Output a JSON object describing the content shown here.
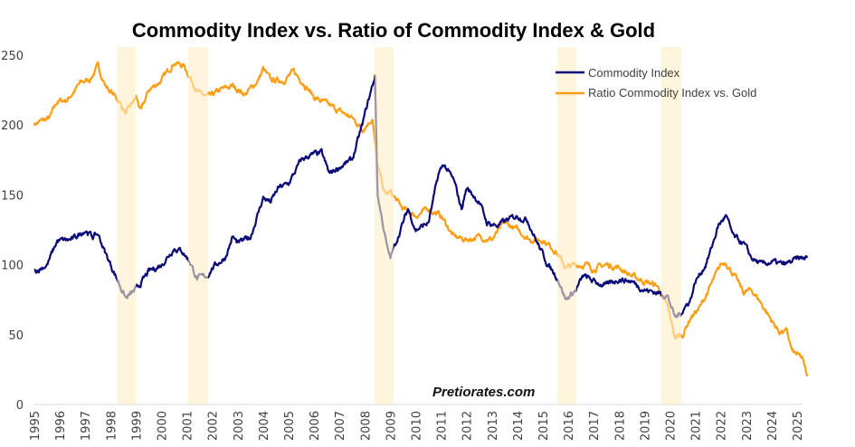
{
  "chart_data": {
    "type": "line",
    "title": "Commodity Index vs. Ratio of Commodity Index & Gold",
    "xlabel": "",
    "ylabel": "",
    "xlim": [
      1995,
      2025.5
    ],
    "ylim": [
      0,
      250
    ],
    "yticks": [
      0,
      50,
      100,
      150,
      200,
      250
    ],
    "xticks": [
      "1995",
      "1996",
      "1997",
      "1998",
      "1999",
      "2000",
      "2001",
      "2002",
      "2003",
      "2004",
      "2005",
      "2006",
      "2007",
      "2008",
      "2009",
      "2010",
      "2011",
      "2012",
      "2013",
      "2014",
      "2015",
      "2016",
      "2017",
      "2018",
      "2019",
      "2020",
      "2021",
      "2022",
      "2023",
      "2024",
      "2025"
    ],
    "grid": false,
    "legend_position": "top-right",
    "watermark": "Pretiorates.com",
    "shaded_periods": [
      [
        1998.25,
        1999.0
      ],
      [
        2001.05,
        2001.83
      ],
      [
        2008.38,
        2009.13
      ],
      [
        2015.57,
        2016.32
      ],
      [
        2019.66,
        2020.44
      ]
    ],
    "shade_color": "#fdeec4",
    "series": [
      {
        "name": "Commodity Index",
        "color": "#0a0a78",
        "points": [
          [
            1995.0,
            95
          ],
          [
            1995.5,
            100
          ],
          [
            1995.9,
            117
          ],
          [
            1996.5,
            118
          ],
          [
            1997.0,
            125
          ],
          [
            1997.3,
            120
          ],
          [
            1997.5,
            122
          ],
          [
            1997.8,
            108
          ],
          [
            1998.3,
            88
          ],
          [
            1998.6,
            76
          ],
          [
            1999.0,
            82
          ],
          [
            1999.5,
            95
          ],
          [
            2000.0,
            100
          ],
          [
            2000.5,
            112
          ],
          [
            2000.8,
            110
          ],
          [
            2001.1,
            103
          ],
          [
            2001.4,
            90
          ],
          [
            2001.8,
            92
          ],
          [
            2002.0,
            98
          ],
          [
            2002.5,
            105
          ],
          [
            2002.8,
            120
          ],
          [
            2003.0,
            115
          ],
          [
            2003.5,
            120
          ],
          [
            2004.0,
            148
          ],
          [
            2004.3,
            145
          ],
          [
            2004.6,
            155
          ],
          [
            2005.0,
            158
          ],
          [
            2005.5,
            175
          ],
          [
            2005.8,
            178
          ],
          [
            2006.3,
            180
          ],
          [
            2006.6,
            165
          ],
          [
            2007.0,
            170
          ],
          [
            2007.5,
            175
          ],
          [
            2007.9,
            200
          ],
          [
            2008.1,
            215
          ],
          [
            2008.4,
            235
          ],
          [
            2008.5,
            150
          ],
          [
            2008.9,
            110
          ],
          [
            2009.0,
            105
          ],
          [
            2009.3,
            120
          ],
          [
            2009.7,
            140
          ],
          [
            2010.0,
            125
          ],
          [
            2010.5,
            130
          ],
          [
            2010.9,
            165
          ],
          [
            2011.1,
            172
          ],
          [
            2011.5,
            160
          ],
          [
            2011.8,
            140
          ],
          [
            2012.0,
            155
          ],
          [
            2012.5,
            145
          ],
          [
            2012.8,
            130
          ],
          [
            2013.2,
            128
          ],
          [
            2013.6,
            132
          ],
          [
            2014.0,
            135
          ],
          [
            2014.4,
            132
          ],
          [
            2014.8,
            115
          ],
          [
            2015.2,
            100
          ],
          [
            2015.6,
            90
          ],
          [
            2015.9,
            75
          ],
          [
            2016.3,
            82
          ],
          [
            2016.6,
            92
          ],
          [
            2017.0,
            88
          ],
          [
            2017.5,
            85
          ],
          [
            2018.0,
            90
          ],
          [
            2018.5,
            88
          ],
          [
            2019.0,
            82
          ],
          [
            2019.5,
            80
          ],
          [
            2019.9,
            78
          ],
          [
            2020.2,
            62
          ],
          [
            2020.4,
            65
          ],
          [
            2020.8,
            75
          ],
          [
            2021.0,
            88
          ],
          [
            2021.4,
            100
          ],
          [
            2021.6,
            110
          ],
          [
            2021.9,
            128
          ],
          [
            2022.2,
            135
          ],
          [
            2022.5,
            120
          ],
          [
            2022.9,
            115
          ],
          [
            2023.2,
            105
          ],
          [
            2023.6,
            100
          ],
          [
            2024.0,
            102
          ],
          [
            2024.5,
            100
          ],
          [
            2025.0,
            104
          ],
          [
            2025.4,
            105
          ]
        ]
      },
      {
        "name": "Ratio Commodity Index vs. Gold",
        "color": "#ff9d14",
        "points": [
          [
            1995.0,
            201
          ],
          [
            1995.6,
            205
          ],
          [
            1995.9,
            217
          ],
          [
            1996.3,
            218
          ],
          [
            1996.8,
            230
          ],
          [
            1997.2,
            233
          ],
          [
            1997.5,
            242
          ],
          [
            1997.8,
            228
          ],
          [
            1998.3,
            218
          ],
          [
            1998.6,
            208
          ],
          [
            1999.0,
            220
          ],
          [
            1999.2,
            210
          ],
          [
            1999.5,
            225
          ],
          [
            2000.0,
            232
          ],
          [
            2000.5,
            245
          ],
          [
            2000.9,
            242
          ],
          [
            2001.1,
            235
          ],
          [
            2001.5,
            222
          ],
          [
            2001.9,
            220
          ],
          [
            2002.3,
            225
          ],
          [
            2002.8,
            228
          ],
          [
            2003.3,
            222
          ],
          [
            2003.8,
            232
          ],
          [
            2004.0,
            240
          ],
          [
            2004.3,
            232
          ],
          [
            2004.8,
            232
          ],
          [
            2005.2,
            238
          ],
          [
            2005.6,
            230
          ],
          [
            2006.0,
            220
          ],
          [
            2006.5,
            215
          ],
          [
            2007.0,
            210
          ],
          [
            2007.5,
            205
          ],
          [
            2007.9,
            197
          ],
          [
            2008.3,
            205
          ],
          [
            2008.5,
            170
          ],
          [
            2008.8,
            150
          ],
          [
            2009.0,
            152
          ],
          [
            2009.5,
            140
          ],
          [
            2010.0,
            135
          ],
          [
            2010.5,
            140
          ],
          [
            2011.0,
            135
          ],
          [
            2011.5,
            120
          ],
          [
            2012.0,
            118
          ],
          [
            2012.5,
            120
          ],
          [
            2013.0,
            118
          ],
          [
            2013.5,
            130
          ],
          [
            2014.0,
            125
          ],
          [
            2014.5,
            118
          ],
          [
            2015.0,
            118
          ],
          [
            2015.5,
            110
          ],
          [
            2015.9,
            98
          ],
          [
            2016.3,
            100
          ],
          [
            2016.7,
            100
          ],
          [
            2017.0,
            97
          ],
          [
            2017.5,
            100
          ],
          [
            2018.0,
            98
          ],
          [
            2018.5,
            92
          ],
          [
            2019.0,
            88
          ],
          [
            2019.5,
            85
          ],
          [
            2019.9,
            70
          ],
          [
            2020.2,
            48
          ],
          [
            2020.5,
            50
          ],
          [
            2020.8,
            62
          ],
          [
            2021.2,
            70
          ],
          [
            2021.6,
            85
          ],
          [
            2022.0,
            100
          ],
          [
            2022.2,
            102
          ],
          [
            2022.6,
            90
          ],
          [
            2022.9,
            80
          ],
          [
            2023.2,
            82
          ],
          [
            2023.5,
            75
          ],
          [
            2024.0,
            60
          ],
          [
            2024.3,
            52
          ],
          [
            2024.6,
            52
          ],
          [
            2024.8,
            38
          ],
          [
            2025.2,
            33
          ],
          [
            2025.4,
            20
          ]
        ]
      }
    ]
  }
}
